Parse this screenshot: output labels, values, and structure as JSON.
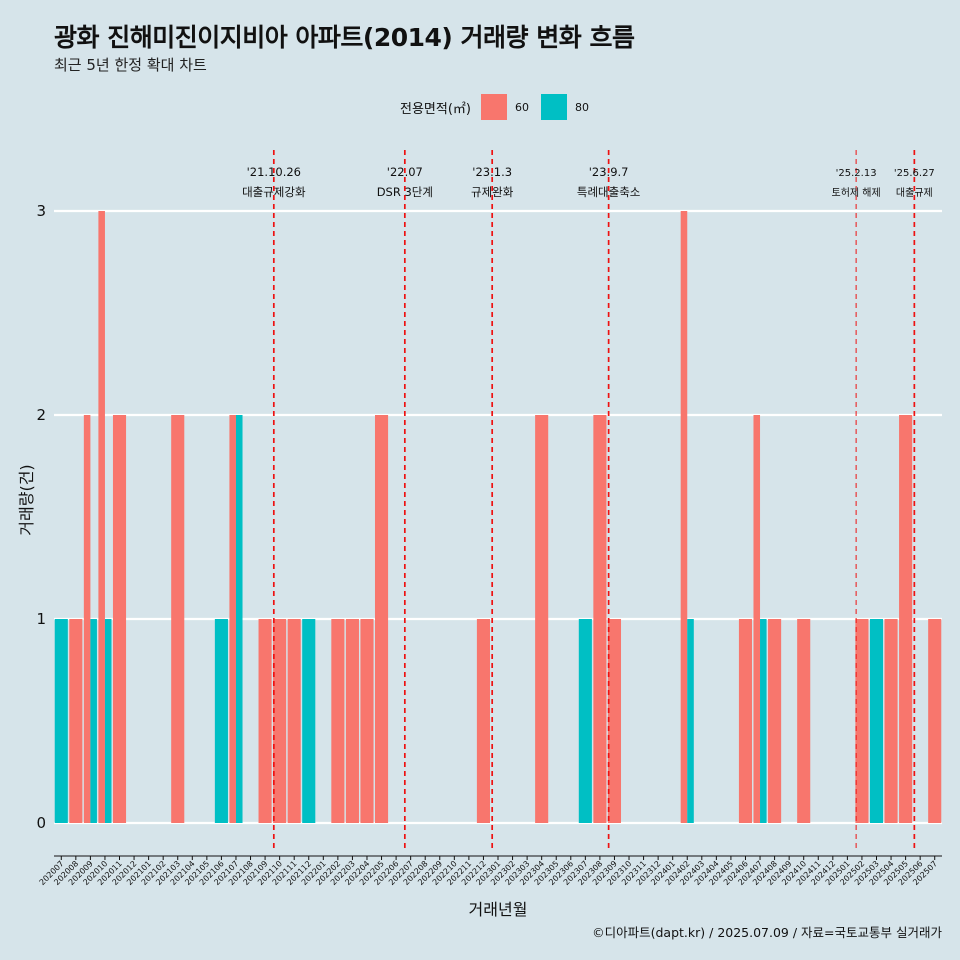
{
  "title": "광화 진해미진이지비아 아파트(2014) 거래량 변화 흐름",
  "subtitle": "최근 5년 한정 확대 차트",
  "legend": {
    "title": "전용면적(㎡)",
    "items": [
      {
        "label": "60",
        "color": "#F8766D"
      },
      {
        "label": "80",
        "color": "#00BFC4"
      }
    ]
  },
  "caption": "©디아파트(dapt.kr) / 2025.07.09 / 자료=국토교통부 실거래가",
  "chart_data": {
    "type": "bar",
    "xlabel": "거래년월",
    "ylabel": "거래량(건)",
    "yticks": [
      0,
      1,
      2,
      3
    ],
    "ylim": [
      0,
      3
    ],
    "categories": [
      "202007",
      "202008",
      "202009",
      "202010",
      "202011",
      "202012",
      "202101",
      "202102",
      "202103",
      "202104",
      "202105",
      "202106",
      "202107",
      "202108",
      "202109",
      "202110",
      "202111",
      "202112",
      "202201",
      "202202",
      "202203",
      "202204",
      "202205",
      "202206",
      "202207",
      "202208",
      "202209",
      "202210",
      "202211",
      "202212",
      "202301",
      "202302",
      "202303",
      "202304",
      "202305",
      "202306",
      "202307",
      "202308",
      "202309",
      "202310",
      "202311",
      "202312",
      "202401",
      "202402",
      "202403",
      "202404",
      "202405",
      "202406",
      "202407",
      "202408",
      "202409",
      "202410",
      "202411",
      "202412",
      "202501",
      "202502",
      "202503",
      "202504",
      "202505",
      "202506",
      "202507"
    ],
    "bars": [
      {
        "x": "202007",
        "series": "80",
        "value": 1
      },
      {
        "x": "202008",
        "series": "60",
        "value": 1
      },
      {
        "x": "202009",
        "series": "60",
        "value": 2
      },
      {
        "x": "202009",
        "series": "80",
        "value": 1
      },
      {
        "x": "202010",
        "series": "60",
        "value": 3
      },
      {
        "x": "202010",
        "series": "80",
        "value": 1
      },
      {
        "x": "202011",
        "series": "60",
        "value": 2
      },
      {
        "x": "202103",
        "series": "60",
        "value": 2
      },
      {
        "x": "202106",
        "series": "80",
        "value": 1
      },
      {
        "x": "202107",
        "series": "60",
        "value": 2
      },
      {
        "x": "202107",
        "series": "80",
        "value": 2
      },
      {
        "x": "202109",
        "series": "60",
        "value": 1
      },
      {
        "x": "202110",
        "series": "60",
        "value": 1
      },
      {
        "x": "202111",
        "series": "60",
        "value": 1
      },
      {
        "x": "202112",
        "series": "80",
        "value": 1
      },
      {
        "x": "202202",
        "series": "60",
        "value": 1
      },
      {
        "x": "202203",
        "series": "60",
        "value": 1
      },
      {
        "x": "202204",
        "series": "60",
        "value": 1
      },
      {
        "x": "202205",
        "series": "60",
        "value": 2
      },
      {
        "x": "202212",
        "series": "60",
        "value": 1
      },
      {
        "x": "202304",
        "series": "60",
        "value": 2
      },
      {
        "x": "202307",
        "series": "80",
        "value": 1
      },
      {
        "x": "202308",
        "series": "60",
        "value": 2
      },
      {
        "x": "202309",
        "series": "60",
        "value": 1
      },
      {
        "x": "202402",
        "series": "60",
        "value": 3
      },
      {
        "x": "202402",
        "series": "80",
        "value": 1
      },
      {
        "x": "202406",
        "series": "60",
        "value": 1
      },
      {
        "x": "202407",
        "series": "60",
        "value": 2
      },
      {
        "x": "202407",
        "series": "80",
        "value": 1
      },
      {
        "x": "202408",
        "series": "60",
        "value": 1
      },
      {
        "x": "202410",
        "series": "60",
        "value": 1
      },
      {
        "x": "202502",
        "series": "60",
        "value": 1
      },
      {
        "x": "202503",
        "series": "80",
        "value": 1
      },
      {
        "x": "202504",
        "series": "60",
        "value": 1
      },
      {
        "x": "202505",
        "series": "60",
        "value": 2
      },
      {
        "x": "202507",
        "series": "60",
        "value": 1
      }
    ],
    "events": [
      {
        "date": "'21.10.26",
        "label": "대출규제강화",
        "x": "202110"
      },
      {
        "date": "'22.07",
        "label": "DSR 3단계",
        "x": "202207"
      },
      {
        "date": "'23.1.3",
        "label": "규제완화",
        "x": "202301"
      },
      {
        "date": "'23.9.7",
        "label": "특례대출축소",
        "x": "202309"
      },
      {
        "date": "'25.2.13",
        "label": "토허제 해제",
        "x": "202502"
      },
      {
        "date": "'25.6.27",
        "label": "대출규제",
        "x": "202506"
      }
    ]
  }
}
